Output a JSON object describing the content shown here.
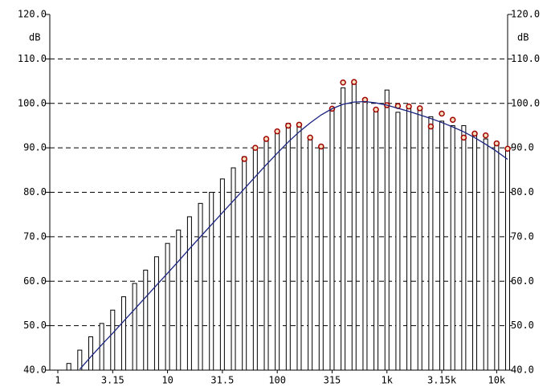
{
  "chart_data": {
    "type": "bar",
    "y_label": "dB",
    "categories": [
      "1",
      null,
      null,
      null,
      null,
      "3.15",
      null,
      null,
      null,
      null,
      "10",
      null,
      null,
      null,
      null,
      "31.5",
      null,
      null,
      null,
      null,
      "100",
      null,
      null,
      null,
      null,
      "315",
      null,
      null,
      null,
      null,
      "1k",
      null,
      null,
      null,
      null,
      "3.15k",
      null,
      null,
      null,
      null,
      "10k",
      null
    ],
    "series": [
      {
        "type": "bar",
        "color": "#000000",
        "values": [
          null,
          41.5,
          44.5,
          47.5,
          50.5,
          53.5,
          56.5,
          59.5,
          62.5,
          65.5,
          68.5,
          71.5,
          74.5,
          77.5,
          80,
          83,
          85.5,
          88,
          90,
          92,
          94,
          95.5,
          95,
          92.5,
          90.5,
          99,
          103.5,
          105,
          101,
          98.5,
          103,
          98,
          99.5,
          98.5,
          97,
          96,
          95,
          95,
          93,
          92,
          91,
          90
        ]
      },
      {
        "type": "scatter",
        "color": "#a00000",
        "values": [
          null,
          null,
          null,
          null,
          null,
          null,
          null,
          null,
          null,
          null,
          null,
          null,
          null,
          null,
          null,
          null,
          null,
          87.5,
          90,
          92,
          93.7,
          95,
          95.2,
          92.3,
          90.3,
          98.8,
          104.7,
          104.8,
          100.8,
          98.6,
          99.6,
          99.4,
          99.3,
          98.9,
          94.8,
          97.7,
          96.3,
          92.3,
          93.2,
          92.8,
          91,
          89.8
        ]
      },
      {
        "type": "line",
        "color": "#1a237e",
        "values": [
          null,
          null,
          40.2,
          43,
          45.7,
          48.3,
          51,
          53.7,
          56.4,
          59.1,
          61.8,
          64.5,
          67.3,
          70,
          72.7,
          75.4,
          78.1,
          80.8,
          83.5,
          86.2,
          88.8,
          91.3,
          93.6,
          95.6,
          97.4,
          98.8,
          99.8,
          100.3,
          100.4,
          100.1,
          99.6,
          98.9,
          98.2,
          97.4,
          96.6,
          95.7,
          94.7,
          93.6,
          92.3,
          90.8,
          89.2,
          87.4
        ]
      }
    ],
    "ylim": [
      40,
      120
    ],
    "yticks": [
      {
        "value": 40,
        "label": "40.0"
      },
      {
        "value": 50,
        "label": "50.0"
      },
      {
        "value": 60,
        "label": "60.0"
      },
      {
        "value": 70,
        "label": "70.0"
      },
      {
        "value": 80,
        "label": "80.0"
      },
      {
        "value": 90,
        "label": "90.0"
      },
      {
        "value": 100,
        "label": "100.0"
      },
      {
        "value": 110,
        "label": "110.0"
      },
      {
        "value": 120,
        "label": "120.0"
      }
    ],
    "grid": true
  }
}
